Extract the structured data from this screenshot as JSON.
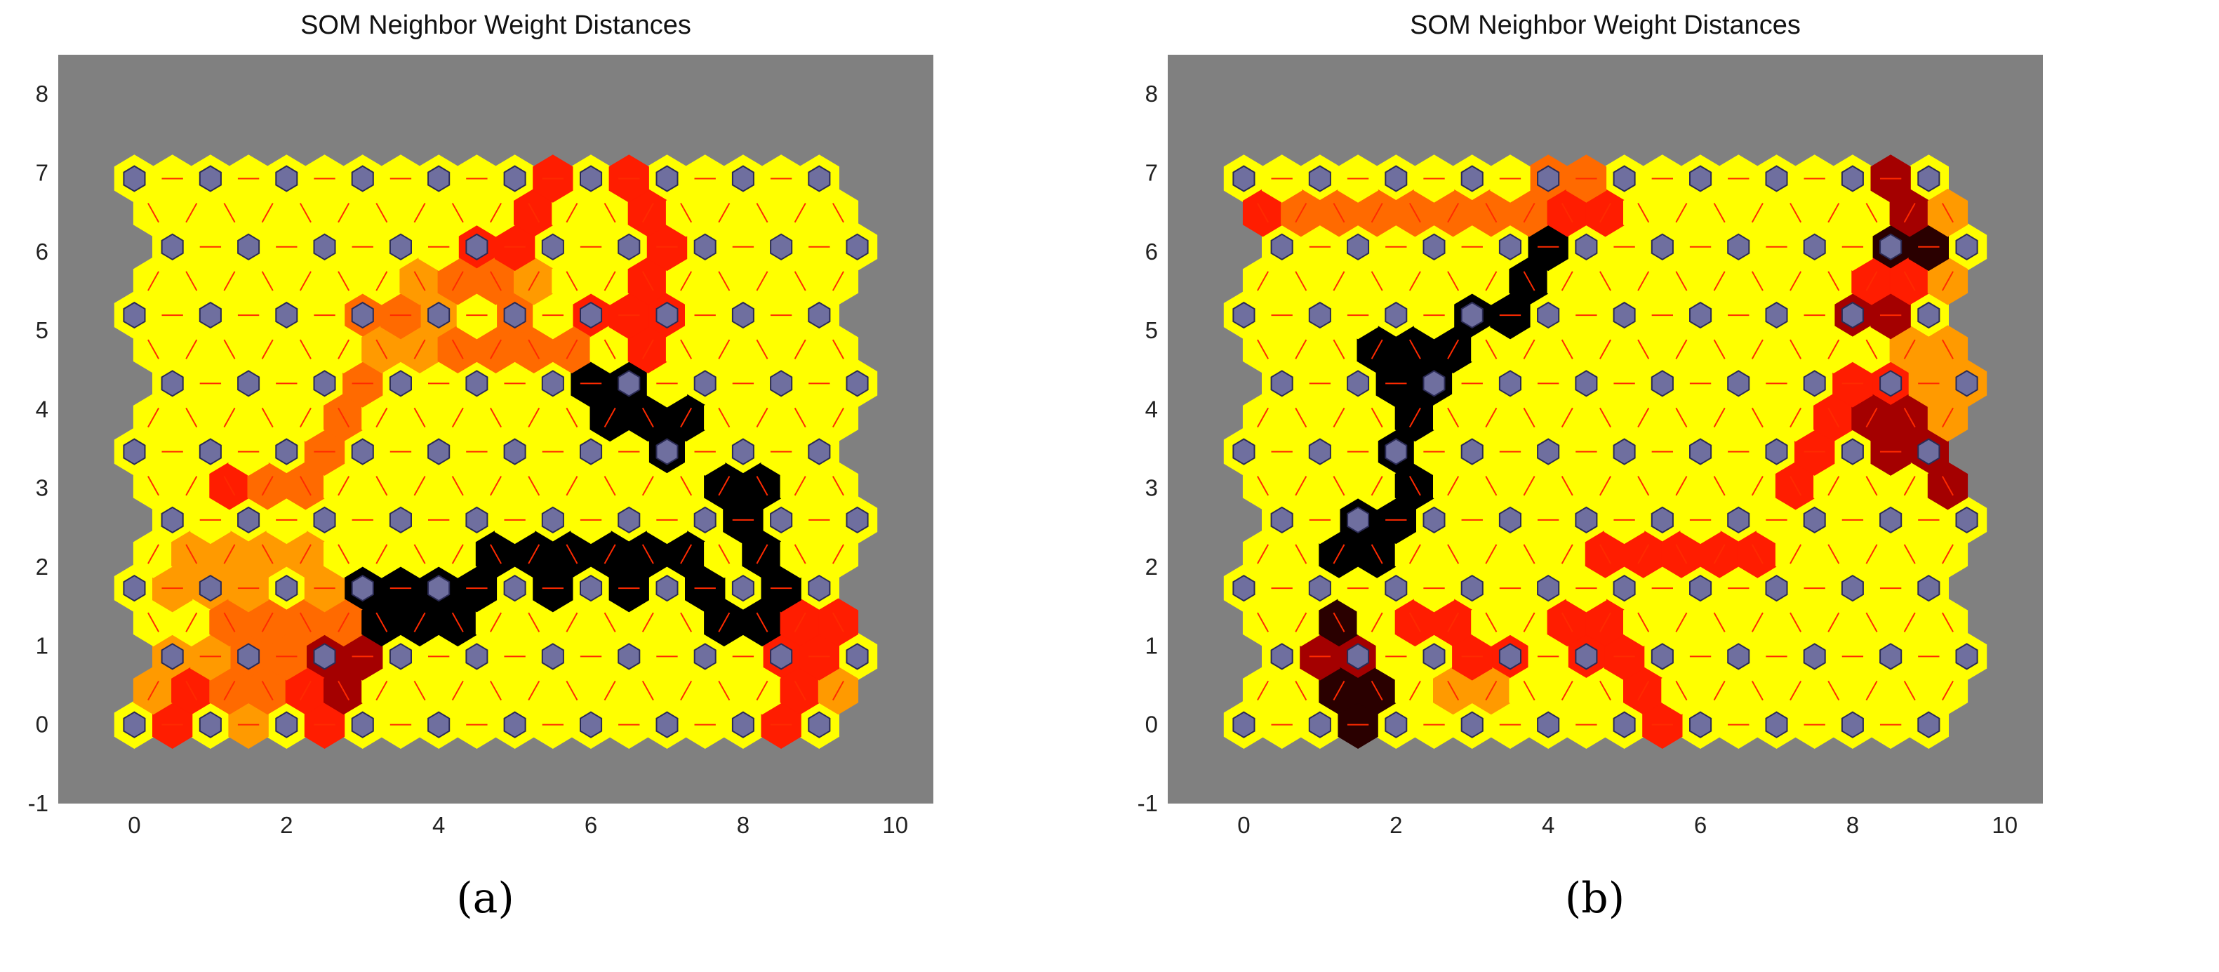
{
  "chart_data": [
    {
      "type": "heatmap",
      "title": "SOM Neighbor Weight Distances",
      "caption": "(a)",
      "grid": {
        "columns": 10,
        "rows": 9,
        "topology": "hexagonal"
      },
      "xlim": [
        -1,
        10.5
      ],
      "ylim": [
        -1,
        8.5
      ],
      "xticks": [
        "0",
        "2",
        "4",
        "6",
        "8",
        "10"
      ],
      "yticks": [
        "-1",
        "0",
        "1",
        "2",
        "3",
        "4",
        "5",
        "6",
        "7",
        "8"
      ],
      "colormap": {
        "0": "#ffff00",
        "1": "#ff9a00",
        "2": "#ff6a00",
        "3": "#ff1d00",
        "4": "#a40000",
        "5": "#000000",
        "6": "#2a0000"
      },
      "neuron_color": "#6f6f9f",
      "background": "#808080",
      "links": [
        {
          "x": 0.75,
          "y": 7.8,
          "level": 4
        },
        {
          "x": 1.5,
          "y": 7.8,
          "level": 0
        },
        {
          "x": 2.5,
          "y": 7.8,
          "level": 0
        },
        {
          "x": 3.5,
          "y": 7.8,
          "level": 0
        },
        {
          "x": 4.5,
          "y": 7.8,
          "level": 0
        },
        {
          "x": 5.5,
          "y": 7.8,
          "level": 2
        },
        {
          "x": 6.5,
          "y": 7.8,
          "level": 2
        },
        {
          "x": 7.5,
          "y": 7.8,
          "level": 2
        },
        {
          "x": 8.5,
          "y": 7.8,
          "level": 2
        },
        {
          "x": 0.25,
          "y": 7.3,
          "level": 4
        },
        {
          "x": 9.25,
          "y": 7.3,
          "level": 3
        },
        {
          "x": 5.75,
          "y": 7.3,
          "level": 3
        },
        {
          "x": 6.25,
          "y": 7.3,
          "level": 3
        },
        {
          "x": 5.5,
          "y": 6.9,
          "level": 3
        },
        {
          "x": 6.5,
          "y": 6.9,
          "level": 3
        },
        {
          "x": 5.25,
          "y": 6.4,
          "level": 3
        },
        {
          "x": 6.75,
          "y": 6.4,
          "level": 3
        },
        {
          "x": 4.75,
          "y": 6.0,
          "level": 3
        },
        {
          "x": 7.0,
          "y": 6.0,
          "level": 3
        },
        {
          "x": 3.75,
          "y": 5.6,
          "level": 1
        },
        {
          "x": 4.5,
          "y": 5.6,
          "level": 2
        },
        {
          "x": 5.25,
          "y": 5.6,
          "level": 1
        },
        {
          "x": 6.75,
          "y": 5.6,
          "level": 3
        },
        {
          "x": 3.25,
          "y": 5.2,
          "level": 2
        },
        {
          "x": 4.0,
          "y": 5.2,
          "level": 1
        },
        {
          "x": 5.0,
          "y": 5.2,
          "level": 2
        },
        {
          "x": 6.25,
          "y": 5.2,
          "level": 3
        },
        {
          "x": 6.75,
          "y": 5.0,
          "level": 3
        },
        {
          "x": 3.5,
          "y": 4.8,
          "level": 1
        },
        {
          "x": 4.5,
          "y": 4.8,
          "level": 2
        },
        {
          "x": 5.5,
          "y": 4.8,
          "level": 2
        },
        {
          "x": 3.0,
          "y": 4.4,
          "level": 2
        },
        {
          "x": 6.25,
          "y": 4.2,
          "level": 5
        },
        {
          "x": 6.75,
          "y": 4.0,
          "level": 5
        },
        {
          "x": 7.25,
          "y": 3.9,
          "level": 5
        },
        {
          "x": 2.75,
          "y": 4.0,
          "level": 2
        },
        {
          "x": 2.5,
          "y": 3.6,
          "level": 2
        },
        {
          "x": 7.0,
          "y": 3.5,
          "level": 5
        },
        {
          "x": 7.75,
          "y": 3.2,
          "level": 5
        },
        {
          "x": 1.75,
          "y": 3.2,
          "level": 2
        },
        {
          "x": 2.25,
          "y": 3.2,
          "level": 2
        },
        {
          "x": 1.25,
          "y": 2.9,
          "level": 3
        },
        {
          "x": 8.0,
          "y": 2.8,
          "level": 5
        },
        {
          "x": 8.25,
          "y": 2.3,
          "level": 5
        },
        {
          "x": 1.0,
          "y": 2.2,
          "level": 1
        },
        {
          "x": 2.0,
          "y": 2.2,
          "level": 1
        },
        {
          "x": 4.75,
          "y": 2.3,
          "level": 5
        },
        {
          "x": 5.25,
          "y": 2.2,
          "level": 5
        },
        {
          "x": 6.0,
          "y": 2.2,
          "level": 5
        },
        {
          "x": 6.75,
          "y": 2.2,
          "level": 5
        },
        {
          "x": 7.25,
          "y": 2.2,
          "level": 5
        },
        {
          "x": 4.5,
          "y": 1.8,
          "level": 5
        },
        {
          "x": 5.5,
          "y": 1.8,
          "level": 5
        },
        {
          "x": 6.5,
          "y": 1.8,
          "level": 5
        },
        {
          "x": 7.5,
          "y": 1.8,
          "level": 5
        },
        {
          "x": 8.5,
          "y": 1.8,
          "level": 5
        },
        {
          "x": 0.75,
          "y": 1.8,
          "level": 1
        },
        {
          "x": 1.5,
          "y": 1.8,
          "level": 1
        },
        {
          "x": 2.5,
          "y": 1.8,
          "level": 1
        },
        {
          "x": 3.5,
          "y": 1.5,
          "level": 5
        },
        {
          "x": 4.0,
          "y": 1.5,
          "level": 5
        },
        {
          "x": 3.0,
          "y": 1.4,
          "level": 5
        },
        {
          "x": 7.75,
          "y": 1.3,
          "level": 5
        },
        {
          "x": 8.25,
          "y": 1.3,
          "level": 5
        },
        {
          "x": 1.25,
          "y": 1.3,
          "level": 2
        },
        {
          "x": 1.75,
          "y": 1.3,
          "level": 2
        },
        {
          "x": 2.25,
          "y": 1.3,
          "level": 2
        },
        {
          "x": 2.75,
          "y": 1.3,
          "level": 2
        },
        {
          "x": 9.0,
          "y": 1.3,
          "level": 3
        },
        {
          "x": 2.75,
          "y": 0.9,
          "level": 4
        },
        {
          "x": 0.75,
          "y": 0.9,
          "level": 1
        },
        {
          "x": 1.25,
          "y": 0.9,
          "level": 2
        },
        {
          "x": 2.25,
          "y": 0.9,
          "level": 2
        },
        {
          "x": 8.75,
          "y": 0.9,
          "level": 3
        },
        {
          "x": 0.25,
          "y": 0.4,
          "level": 1
        },
        {
          "x": 0.75,
          "y": 0.4,
          "level": 3
        },
        {
          "x": 1.25,
          "y": 0.4,
          "level": 2
        },
        {
          "x": 1.75,
          "y": 0.4,
          "level": 2
        },
        {
          "x": 2.25,
          "y": 0.4,
          "level": 3
        },
        {
          "x": 2.75,
          "y": 0.4,
          "level": 4
        },
        {
          "x": 8.75,
          "y": 0.4,
          "level": 3
        },
        {
          "x": 9.25,
          "y": 0.4,
          "level": 1
        },
        {
          "x": 0.5,
          "y": 0.0,
          "level": 3
        },
        {
          "x": 1.5,
          "y": 0.0,
          "level": 1
        },
        {
          "x": 2.5,
          "y": 0.0,
          "level": 3
        },
        {
          "x": 8.5,
          "y": 0.0,
          "level": 3
        }
      ]
    },
    {
      "type": "heatmap",
      "title": "SOM Neighbor Weight Distances",
      "caption": "(b)",
      "grid": {
        "columns": 10,
        "rows": 9,
        "topology": "hexagonal"
      },
      "xlim": [
        -1,
        10.5
      ],
      "ylim": [
        -1,
        8.5
      ],
      "xticks": [
        "0",
        "2",
        "4",
        "6",
        "8",
        "10"
      ],
      "yticks": [
        "-1",
        "0",
        "1",
        "2",
        "3",
        "4",
        "5",
        "6",
        "7",
        "8"
      ],
      "colormap": {
        "0": "#ffff00",
        "1": "#ff9a00",
        "2": "#ff6a00",
        "3": "#ff1d00",
        "4": "#a40000",
        "5": "#000000",
        "6": "#2a0000"
      },
      "neuron_color": "#6f6f9f",
      "background": "#808080",
      "links": [
        {
          "x": 0.75,
          "y": 7.8,
          "level": 1
        },
        {
          "x": 1.5,
          "y": 7.8,
          "level": 1
        },
        {
          "x": 2.5,
          "y": 7.8,
          "level": 1
        },
        {
          "x": 3.5,
          "y": 7.8,
          "level": 1
        },
        {
          "x": 4.5,
          "y": 7.8,
          "level": 1
        },
        {
          "x": 5.0,
          "y": 7.6,
          "level": 3
        },
        {
          "x": 8.0,
          "y": 7.8,
          "level": 4
        },
        {
          "x": 9.0,
          "y": 7.8,
          "level": 1
        },
        {
          "x": 0.25,
          "y": 7.3,
          "level": 1
        },
        {
          "x": 0.75,
          "y": 7.3,
          "level": 1
        },
        {
          "x": 1.5,
          "y": 7.3,
          "level": 1
        },
        {
          "x": 2.5,
          "y": 7.3,
          "level": 1
        },
        {
          "x": 3.5,
          "y": 7.3,
          "level": 1
        },
        {
          "x": 4.75,
          "y": 7.3,
          "level": 3
        },
        {
          "x": 8.25,
          "y": 7.3,
          "level": 3
        },
        {
          "x": 9.25,
          "y": 7.3,
          "level": 1
        },
        {
          "x": 0.25,
          "y": 6.5,
          "level": 3
        },
        {
          "x": 0.75,
          "y": 6.5,
          "level": 2
        },
        {
          "x": 1.5,
          "y": 6.5,
          "level": 2
        },
        {
          "x": 2.5,
          "y": 6.5,
          "level": 2
        },
        {
          "x": 3.5,
          "y": 6.5,
          "level": 2
        },
        {
          "x": 4.5,
          "y": 6.5,
          "level": 3
        },
        {
          "x": 4.25,
          "y": 6.9,
          "level": 2
        },
        {
          "x": 8.5,
          "y": 6.9,
          "level": 4
        },
        {
          "x": 9.25,
          "y": 6.5,
          "level": 1
        },
        {
          "x": 8.75,
          "y": 6.5,
          "level": 4
        },
        {
          "x": 8.75,
          "y": 6.1,
          "level": 6
        },
        {
          "x": 8.5,
          "y": 5.6,
          "level": 3
        },
        {
          "x": 9.25,
          "y": 5.6,
          "level": 1
        },
        {
          "x": 8.25,
          "y": 5.2,
          "level": 4
        },
        {
          "x": 9.0,
          "y": 4.8,
          "level": 1
        },
        {
          "x": 8.25,
          "y": 4.4,
          "level": 3
        },
        {
          "x": 9.25,
          "y": 4.4,
          "level": 1
        },
        {
          "x": 7.75,
          "y": 4.0,
          "level": 3
        },
        {
          "x": 8.5,
          "y": 4.0,
          "level": 4
        },
        {
          "x": 9.25,
          "y": 4.0,
          "level": 1
        },
        {
          "x": 7.5,
          "y": 3.5,
          "level": 3
        },
        {
          "x": 8.75,
          "y": 3.5,
          "level": 4
        },
        {
          "x": 9.25,
          "y": 3.0,
          "level": 4
        },
        {
          "x": 7.25,
          "y": 3.0,
          "level": 3
        },
        {
          "x": 4.0,
          "y": 6.1,
          "level": 5
        },
        {
          "x": 3.75,
          "y": 5.6,
          "level": 5
        },
        {
          "x": 3.25,
          "y": 5.2,
          "level": 5
        },
        {
          "x": 2.5,
          "y": 4.8,
          "level": 5
        },
        {
          "x": 2.0,
          "y": 4.7,
          "level": 5
        },
        {
          "x": 2.25,
          "y": 4.4,
          "level": 5
        },
        {
          "x": 2.25,
          "y": 3.9,
          "level": 5
        },
        {
          "x": 2.0,
          "y": 3.5,
          "level": 5
        },
        {
          "x": 2.25,
          "y": 3.1,
          "level": 5
        },
        {
          "x": 1.75,
          "y": 2.6,
          "level": 5
        },
        {
          "x": 1.5,
          "y": 2.2,
          "level": 5
        },
        {
          "x": 1.25,
          "y": 1.3,
          "level": 6
        },
        {
          "x": 1.25,
          "y": 0.9,
          "level": 4
        },
        {
          "x": 1.5,
          "y": 0.3,
          "level": 6
        },
        {
          "x": 2.25,
          "y": 1.3,
          "level": 3
        },
        {
          "x": 2.75,
          "y": 1.3,
          "level": 3
        },
        {
          "x": 3.25,
          "y": 0.9,
          "level": 3
        },
        {
          "x": 2.75,
          "y": 0.4,
          "level": 1
        },
        {
          "x": 3.25,
          "y": 0.4,
          "level": 1
        },
        {
          "x": 4.75,
          "y": 2.2,
          "level": 3
        },
        {
          "x": 5.5,
          "y": 2.2,
          "level": 3
        },
        {
          "x": 6.5,
          "y": 2.2,
          "level": 3
        },
        {
          "x": 4.5,
          "y": 1.3,
          "level": 3
        },
        {
          "x": 4.75,
          "y": 0.9,
          "level": 3
        },
        {
          "x": 5.25,
          "y": 0.4,
          "level": 3
        },
        {
          "x": 5.5,
          "y": 0.0,
          "level": 3
        }
      ]
    }
  ]
}
